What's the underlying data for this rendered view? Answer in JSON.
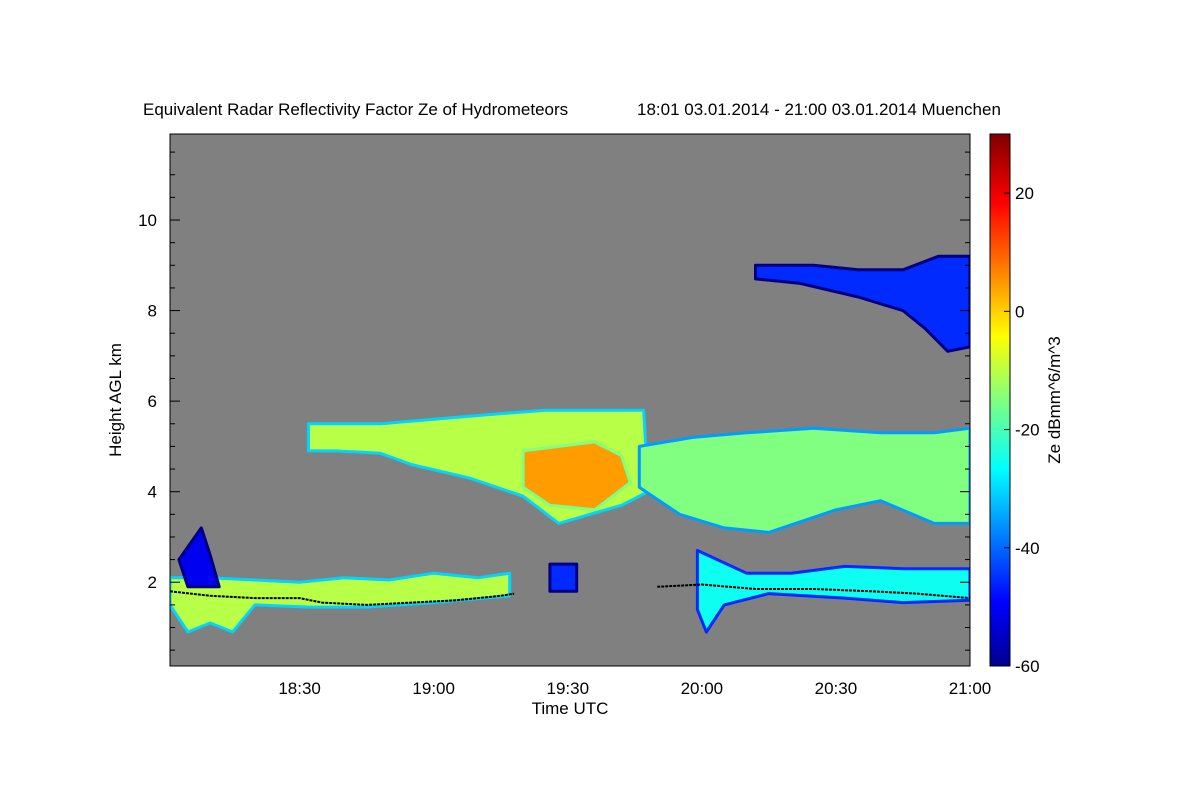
{
  "chart_data": {
    "type": "heatmap",
    "title": "Equivalent Radar Reflectivity Factor Ze of Hydrometeors",
    "subtitle": "18:01 03.01.2014 - 21:00 03.01.2014 Muenchen",
    "xlabel": "Time UTC",
    "ylabel": "Height AGL km",
    "x_range_minutes_utc": [
      1081,
      1260
    ],
    "xticks": [
      {
        "minute": 1110,
        "label": "18:30"
      },
      {
        "minute": 1140,
        "label": "19:00"
      },
      {
        "minute": 1170,
        "label": "19:30"
      },
      {
        "minute": 1200,
        "label": "20:00"
      },
      {
        "minute": 1230,
        "label": "20:30"
      },
      {
        "minute": 1260,
        "label": "21:00"
      }
    ],
    "ylim": [
      0.15,
      11.9
    ],
    "yticks": [
      {
        "value": 2,
        "label": "2"
      },
      {
        "value": 4,
        "label": "4"
      },
      {
        "value": 6,
        "label": "6"
      },
      {
        "value": 8,
        "label": "8"
      },
      {
        "value": 10,
        "label": "10"
      }
    ],
    "colorbar": {
      "label": "Ze dBmm^6/m^3",
      "range": [
        -60,
        30
      ],
      "ticks": [
        {
          "value": -60,
          "label": "-60"
        },
        {
          "value": -40,
          "label": "-40"
        },
        {
          "value": -20,
          "label": "-20"
        },
        {
          "value": 0,
          "label": "0"
        },
        {
          "value": 20,
          "label": "20"
        }
      ],
      "colormap": "jet"
    },
    "no_signal_color": "#808080",
    "echo_regions": [
      {
        "name": "low-level layer",
        "points": [
          [
            1081,
            2.1
          ],
          [
            1090,
            2.1
          ],
          [
            1100,
            2.05
          ],
          [
            1110,
            2.0
          ],
          [
            1120,
            2.1
          ],
          [
            1130,
            2.05
          ],
          [
            1140,
            2.2
          ],
          [
            1150,
            2.1
          ],
          [
            1157,
            2.2
          ],
          [
            1157,
            1.7
          ],
          [
            1140,
            1.55
          ],
          [
            1125,
            1.45
          ],
          [
            1112,
            1.45
          ],
          [
            1100,
            1.5
          ],
          [
            1095,
            0.9
          ],
          [
            1090,
            1.1
          ],
          [
            1085,
            0.9
          ],
          [
            1081,
            1.5
          ]
        ],
        "ze": -10
      },
      {
        "name": "low-level convective spot",
        "points": [
          [
            1083,
            2.5
          ],
          [
            1088,
            3.2
          ],
          [
            1090,
            2.6
          ],
          [
            1092,
            1.9
          ],
          [
            1085,
            1.9
          ]
        ],
        "ze": -50
      },
      {
        "name": "mid-level cloud left",
        "points": [
          [
            1112,
            5.5
          ],
          [
            1128,
            5.5
          ],
          [
            1140,
            5.6
          ],
          [
            1152,
            5.7
          ],
          [
            1165,
            5.8
          ],
          [
            1178,
            5.8
          ],
          [
            1187,
            5.8
          ],
          [
            1188,
            4.0
          ],
          [
            1182,
            3.7
          ],
          [
            1175,
            3.5
          ],
          [
            1168,
            3.3
          ],
          [
            1160,
            3.9
          ],
          [
            1148,
            4.3
          ],
          [
            1135,
            4.6
          ],
          [
            1128,
            4.85
          ],
          [
            1118,
            4.9
          ],
          [
            1112,
            4.9
          ]
        ],
        "ze": -10
      },
      {
        "name": "mid-level core",
        "points": [
          [
            1160,
            4.9
          ],
          [
            1176,
            5.1
          ],
          [
            1182,
            4.8
          ],
          [
            1184,
            4.2
          ],
          [
            1176,
            3.6
          ],
          [
            1166,
            3.7
          ],
          [
            1160,
            4.1
          ]
        ],
        "ze": 5
      },
      {
        "name": "mid-level cloud right",
        "points": [
          [
            1186,
            5.0
          ],
          [
            1198,
            5.2
          ],
          [
            1210,
            5.3
          ],
          [
            1225,
            5.4
          ],
          [
            1240,
            5.3
          ],
          [
            1252,
            5.3
          ],
          [
            1260,
            5.4
          ],
          [
            1260,
            3.3
          ],
          [
            1252,
            3.3
          ],
          [
            1240,
            3.8
          ],
          [
            1230,
            3.6
          ],
          [
            1215,
            3.1
          ],
          [
            1205,
            3.2
          ],
          [
            1195,
            3.5
          ],
          [
            1186,
            4.1
          ]
        ],
        "ze": -15
      },
      {
        "name": "upper-level cirrus",
        "points": [
          [
            1212,
            9.0
          ],
          [
            1225,
            9.0
          ],
          [
            1235,
            8.9
          ],
          [
            1245,
            8.9
          ],
          [
            1253,
            9.2
          ],
          [
            1260,
            9.2
          ],
          [
            1260,
            7.2
          ],
          [
            1255,
            7.1
          ],
          [
            1250,
            7.6
          ],
          [
            1245,
            8.0
          ],
          [
            1235,
            8.3
          ],
          [
            1222,
            8.6
          ],
          [
            1212,
            8.7
          ]
        ],
        "ze": -45
      },
      {
        "name": "low-level layer right",
        "points": [
          [
            1199,
            2.7
          ],
          [
            1210,
            2.2
          ],
          [
            1220,
            2.2
          ],
          [
            1232,
            2.35
          ],
          [
            1245,
            2.3
          ],
          [
            1260,
            2.3
          ],
          [
            1260,
            1.6
          ],
          [
            1245,
            1.55
          ],
          [
            1232,
            1.65
          ],
          [
            1215,
            1.75
          ],
          [
            1205,
            1.5
          ],
          [
            1201,
            0.9
          ],
          [
            1199,
            1.4
          ]
        ],
        "ze": -25
      },
      {
        "name": "low-level fragments",
        "points": [
          [
            1166,
            2.4
          ],
          [
            1172,
            2.4
          ],
          [
            1172,
            1.8
          ],
          [
            1166,
            1.8
          ]
        ],
        "ze": -45
      }
    ],
    "cloud_base_line": [
      [
        1081,
        1.8
      ],
      [
        1090,
        1.7
      ],
      [
        1100,
        1.65
      ],
      [
        1110,
        1.65
      ],
      [
        1115,
        1.55
      ],
      [
        1125,
        1.5
      ],
      [
        1135,
        1.55
      ],
      [
        1145,
        1.6
      ],
      [
        1155,
        1.7
      ],
      [
        1158,
        1.75
      ]
    ],
    "cloud_base_line_2": [
      [
        1190,
        1.9
      ],
      [
        1200,
        1.95
      ],
      [
        1212,
        1.85
      ],
      [
        1225,
        1.85
      ],
      [
        1238,
        1.8
      ],
      [
        1248,
        1.75
      ],
      [
        1260,
        1.65
      ]
    ],
    "grid": false
  }
}
